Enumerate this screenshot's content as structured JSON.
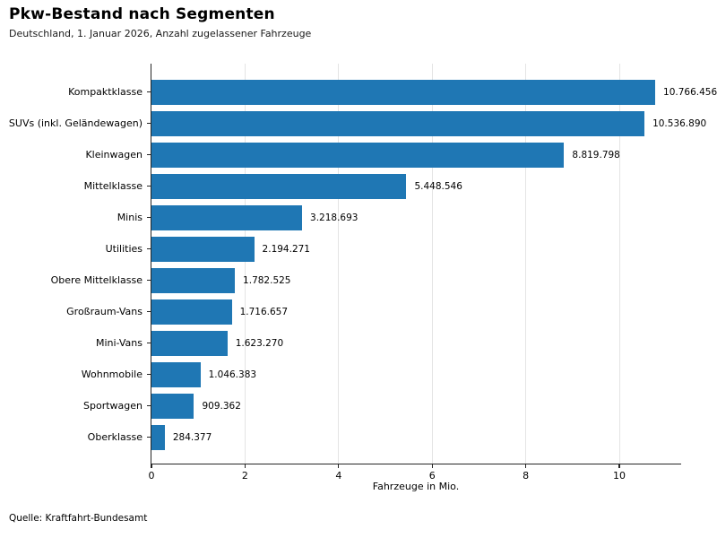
{
  "header": {
    "title": "Pkw-Bestand nach Segmenten",
    "subtitle": "Deutschland, 1. Januar 2026, Anzahl zugelassener Fahrzeuge"
  },
  "footer": {
    "source": "Quelle: Kraftfahrt-Bundesamt"
  },
  "chart_data": {
    "type": "bar",
    "orientation": "horizontal",
    "title": "Pkw-Bestand nach Segmenten",
    "subtitle": "Deutschland, 1. Januar 2026, Anzahl zugelassener Fahrzeuge",
    "categories": [
      "Kompaktklasse",
      "SUVs (inkl. Geländewagen)",
      "Kleinwagen",
      "Mittelklasse",
      "Minis",
      "Utilities",
      "Obere Mittelklasse",
      "Großraum-Vans",
      "Mini-Vans",
      "Wohnmobile",
      "Sportwagen",
      "Oberklasse"
    ],
    "values": [
      10766456,
      10536890,
      8819798,
      5448546,
      3218693,
      2194271,
      1782525,
      1716657,
      1623270,
      1046383,
      909362,
      284377
    ],
    "value_labels": [
      "10.766.456",
      "10.536.890",
      "8.819.798",
      "5.448.546",
      "3.218.693",
      "2.194.271",
      "1.782.525",
      "1.716.657",
      "1.623.270",
      "1.046.383",
      "909.362",
      "284.377"
    ],
    "xlabel": "Fahrzeuge in Mio.",
    "x_ticks": [
      0,
      2,
      4,
      6,
      8,
      10
    ],
    "x_tick_labels": [
      "0",
      "2",
      "4",
      "6",
      "8",
      "10"
    ],
    "xlim": [
      0,
      11.34
    ],
    "unit_divisor": 1000000,
    "grid": "vertical-only",
    "legend": "none",
    "bar_color": "#1f77b4",
    "gridline_color": "#e4e4e4",
    "axis_color": "#262626"
  }
}
